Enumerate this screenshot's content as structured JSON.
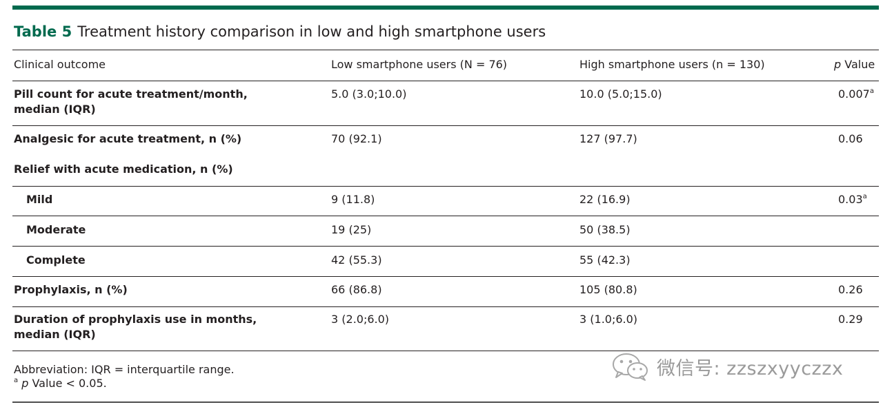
{
  "table": {
    "label": "Table 5",
    "title": "Treatment history comparison in low and high smartphone users",
    "headers": {
      "col1": "Clinical outcome",
      "col2": "Low smartphone users (N = 76)",
      "col3": "High smartphone users (n = 130)",
      "col4_italic": "p",
      "col4_rest": " Value"
    },
    "rows": [
      {
        "outcome_line1": "Pill count for acute treatment/month,",
        "outcome_line2": "median (IQR)",
        "low": "5.0 (3.0;10.0)",
        "high": "10.0 (5.0;15.0)",
        "p": "0.007",
        "p_sup": "a"
      },
      {
        "outcome": "Analgesic for acute treatment, n (%)",
        "low": "70 (92.1)",
        "high": "127 (97.7)",
        "p": "0.06"
      },
      {
        "outcome": "Relief with acute medication, n (%)"
      },
      {
        "outcome": "Mild",
        "low": "9 (11.8)",
        "high": "22 (16.9)",
        "p": "0.03",
        "p_sup": "a"
      },
      {
        "outcome": "Moderate",
        "low": "19 (25)",
        "high": "50 (38.5)"
      },
      {
        "outcome": "Complete",
        "low": "42 (55.3)",
        "high": "55 (42.3)"
      },
      {
        "outcome": "Prophylaxis, n (%)",
        "low": "66 (86.8)",
        "high": "105 (80.8)",
        "p": "0.26"
      },
      {
        "outcome_line1": "Duration of prophylaxis use in months,",
        "outcome_line2": "median (IQR)",
        "low": "3 (2.0;6.0)",
        "high": "3 (1.0;6.0)",
        "p": "0.29"
      }
    ]
  },
  "footnotes": {
    "abbreviation": "Abbreviation: IQR = interquartile range.",
    "note_sup": "a",
    "note_italic": "p",
    "note_rest": " Value < 0.05."
  },
  "watermark": {
    "text": "微信号: zzszxyyczzx",
    "icon": "wechat-icon"
  },
  "colors": {
    "accent": "#006a4e",
    "text": "#231f20",
    "watermark": "#9a9a9a"
  }
}
